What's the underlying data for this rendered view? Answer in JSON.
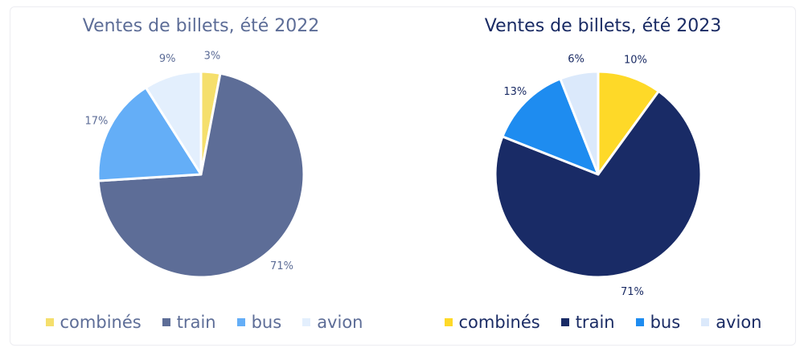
{
  "chart_data": [
    {
      "type": "pie",
      "title": "Ventes de billets, été 2022",
      "categories": [
        "combinés",
        "train",
        "bus",
        "avion"
      ],
      "values": [
        3,
        71,
        17,
        9
      ],
      "labels": [
        "3%",
        "71%",
        "17%",
        "9%"
      ],
      "colors": [
        "#f5df6c",
        "#5d6d97",
        "#64aef7",
        "#e3effd"
      ],
      "text_color": "#5d6d97",
      "legend": "bottom"
    },
    {
      "type": "pie",
      "title": "Ventes de billets, été 2023",
      "categories": [
        "combinés",
        "train",
        "bus",
        "avion"
      ],
      "values": [
        10,
        71,
        13,
        6
      ],
      "labels": [
        "10%",
        "71%",
        "13%",
        "6%"
      ],
      "colors": [
        "#fed928",
        "#192b66",
        "#1e8cf0",
        "#dbe9fb"
      ],
      "text_color": "#1a2b64",
      "legend": "bottom"
    }
  ]
}
